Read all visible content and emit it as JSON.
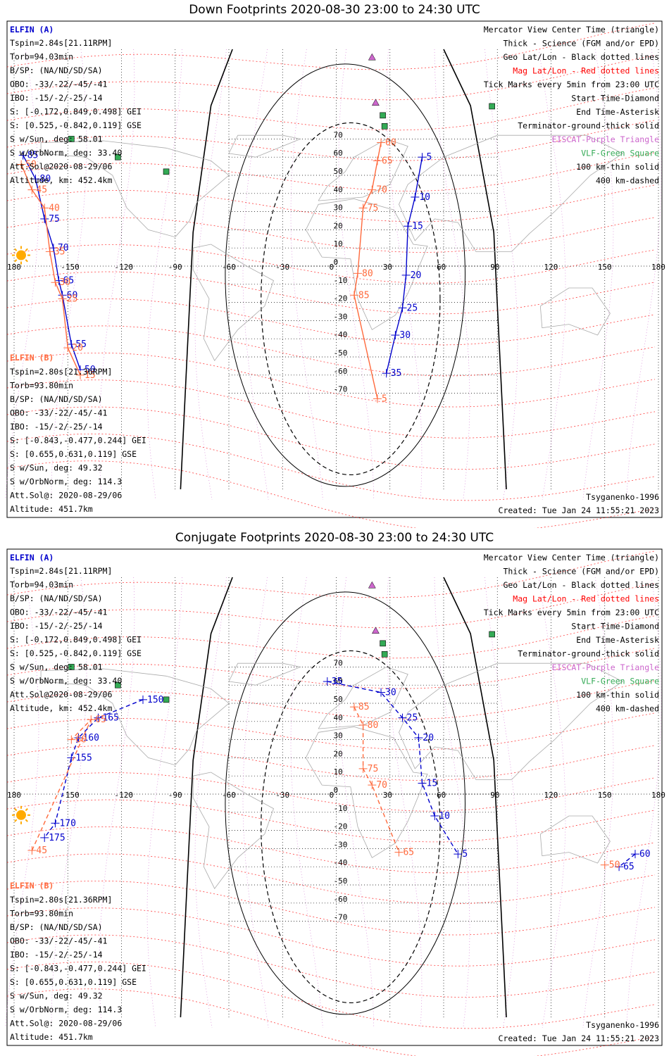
{
  "colors": {
    "elfin_a": "#0000cc",
    "elfin_b": "#ff6a3d",
    "mag_grid": "#ff0000",
    "geo_grid": "#000000",
    "eiscat": "#cc66cc",
    "vlf": "#33aa55",
    "sun": "#ffaa00"
  },
  "axis": {
    "lon_ticks": [
      "180",
      "-150",
      "-120",
      "-90",
      "-60",
      "-30",
      "0",
      "30",
      "60",
      "90",
      "120",
      "150",
      "180"
    ],
    "lat_ticks": [
      "70",
      "60",
      "50",
      "40",
      "30",
      "20",
      "10",
      "0",
      "-10",
      "-20",
      "-30",
      "-40",
      "-50",
      "-60",
      "-70"
    ]
  },
  "elfin_a": {
    "name": "ELFIN (A)",
    "lines": [
      "Tspin=2.84s[21.11RPM]",
      "Torb=94.03min",
      "B/SP: (NA/ND/SD/SA)",
      "OBO: -33/-22/-45/-41",
      "IBO: -15/-2/-25/-14",
      "S: [-0.172,0.849,0.498] GEI",
      "S: [0.525,-0.842,0.119] GSE",
      "S w/Sun, deg: 58.01",
      "S w/OrbNorm, deg: 33.40",
      "Att.Sol@2020-08-29/06",
      "Altitude, km: 452.4km"
    ]
  },
  "elfin_b": {
    "name": "ELFIN (B)",
    "lines": [
      "Tspin=2.80s[21.36RPM]",
      "Torb=93.80min",
      "B/SP: (NA/ND/SD/SA)",
      "OBO: -33/-22/-45/-41",
      "IBO: -15/-2/-25/-14",
      "S: [-0.843,-0.477,0.244] GEI",
      "S: [0.655,0.631,0.119] GSE",
      "S w/Sun, deg: 49.32",
      "S w/OrbNorm, deg: 114.3",
      "Att.Sol@: 2020-08-29/06",
      "Altitude: 451.7km"
    ]
  },
  "legend": [
    {
      "text": "Mercator View Center Time (triangle)",
      "color": "#000000"
    },
    {
      "text": "Thick - Science (FGM and/or EPD)",
      "color": "#000000"
    },
    {
      "text": "Geo Lat/Lon - Black dotted lines",
      "color": "#000000"
    },
    {
      "text": "Mag Lat/Lon - Red dotted lines",
      "color": "#ff0000"
    },
    {
      "text": "Tick Marks every 5min from 23:00 UTC",
      "color": "#000000"
    },
    {
      "text": "Start Time-Diamond",
      "color": "#000000"
    },
    {
      "text": "End Time-Asterisk",
      "color": "#000000"
    },
    {
      "text": "Terminator-ground-thick solid",
      "color": "#000000"
    },
    {
      "text": "EISCAT-Purple Triangle",
      "color": "#cc66cc"
    },
    {
      "text": "VLF-Green Square",
      "color": "#33aa55"
    },
    {
      "text": "100 km-thin solid",
      "color": "#000000"
    },
    {
      "text": "400 km-dashed",
      "color": "#000000"
    }
  ],
  "model": "Tsyganenko-1996",
  "created": "Created: Tue Jan 24 11:55:21 2023",
  "panels": [
    {
      "id": "down",
      "title": "Down Footprints 2020-08-30 23:00 to 24:30 UTC",
      "track_a": {
        "labels": [
          {
            "t": "85",
            "lon": -175,
            "lat": 61
          },
          {
            "t": "80",
            "lon": -168,
            "lat": 48
          },
          {
            "t": "75",
            "lon": -163,
            "lat": 26
          },
          {
            "t": "70",
            "lon": -158,
            "lat": 10
          },
          {
            "t": "65",
            "lon": -155,
            "lat": -8
          },
          {
            "t": "60",
            "lon": -153,
            "lat": -16
          },
          {
            "t": "55",
            "lon": -148,
            "lat": -43
          },
          {
            "t": "50",
            "lon": -143,
            "lat": -57
          },
          {
            "t": "5",
            "lon": 48,
            "lat": 60
          },
          {
            "t": "10",
            "lon": 44,
            "lat": 38
          },
          {
            "t": "15",
            "lon": 40,
            "lat": 22
          },
          {
            "t": "20",
            "lon": 39,
            "lat": -5
          },
          {
            "t": "25",
            "lon": 37,
            "lat": -23
          },
          {
            "t": "30",
            "lon": 33,
            "lat": -38
          },
          {
            "t": "35",
            "lon": 28,
            "lat": -59
          }
        ]
      },
      "track_b": {
        "labels": [
          {
            "t": "50",
            "lon": -176,
            "lat": 56
          },
          {
            "t": "45",
            "lon": -170,
            "lat": 42
          },
          {
            "t": "40",
            "lon": -163,
            "lat": 32
          },
          {
            "t": "35",
            "lon": -160,
            "lat": 8
          },
          {
            "t": "30",
            "lon": -157,
            "lat": -9
          },
          {
            "t": "25",
            "lon": -153,
            "lat": -18
          },
          {
            "t": "20",
            "lon": -150,
            "lat": -45
          },
          {
            "t": "15",
            "lon": -143,
            "lat": -60
          },
          {
            "t": "60",
            "lon": 25,
            "lat": 68
          },
          {
            "t": "65",
            "lon": 23,
            "lat": 58
          },
          {
            "t": "70",
            "lon": 20,
            "lat": 42
          },
          {
            "t": "75",
            "lon": 15,
            "lat": 32
          },
          {
            "t": "80",
            "lon": 12,
            "lat": -4
          },
          {
            "t": "85",
            "lon": 10,
            "lat": -16
          },
          {
            "t": "5",
            "lon": 23,
            "lat": -73
          }
        ]
      }
    },
    {
      "id": "conjugate",
      "title": "Conjugate Footprints 2020-08-30 23:00 to 24:30 UTC",
      "track_a": {
        "labels": [
          {
            "t": "150",
            "lon": -108,
            "lat": 52
          },
          {
            "t": "165",
            "lon": -133,
            "lat": 42
          },
          {
            "t": "160",
            "lon": -144,
            "lat": 31
          },
          {
            "t": "155",
            "lon": -148,
            "lat": 20
          },
          {
            "t": "170",
            "lon": -157,
            "lat": -16
          },
          {
            "t": "175",
            "lon": -163,
            "lat": -24
          },
          {
            "t": "35",
            "lon": -5,
            "lat": 62
          },
          {
            "t": "30",
            "lon": 25,
            "lat": 56
          },
          {
            "t": "25",
            "lon": 37,
            "lat": 42
          },
          {
            "t": "20",
            "lon": 46,
            "lat": 31
          },
          {
            "t": "15",
            "lon": 48,
            "lat": 6
          },
          {
            "t": "10",
            "lon": 55,
            "lat": -12
          },
          {
            "t": "5",
            "lon": 68,
            "lat": -33
          },
          {
            "t": "60",
            "lon": 167,
            "lat": -33
          },
          {
            "t": "65",
            "lon": 158,
            "lat": -40
          }
        ]
      },
      "track_b": {
        "labels": [
          {
            "t": "45",
            "lon": -170,
            "lat": -31
          },
          {
            "t": "65",
            "lon": -137,
            "lat": 41
          },
          {
            "t": "60",
            "lon": -148,
            "lat": 30
          },
          {
            "t": "85",
            "lon": 10,
            "lat": 48
          },
          {
            "t": "80",
            "lon": 15,
            "lat": 38
          },
          {
            "t": "75",
            "lon": 15,
            "lat": 14
          },
          {
            "t": "70",
            "lon": 20,
            "lat": 5
          },
          {
            "t": "65",
            "lon": 35,
            "lat": -32
          },
          {
            "t": "50",
            "lon": 150,
            "lat": -39
          }
        ]
      }
    }
  ]
}
